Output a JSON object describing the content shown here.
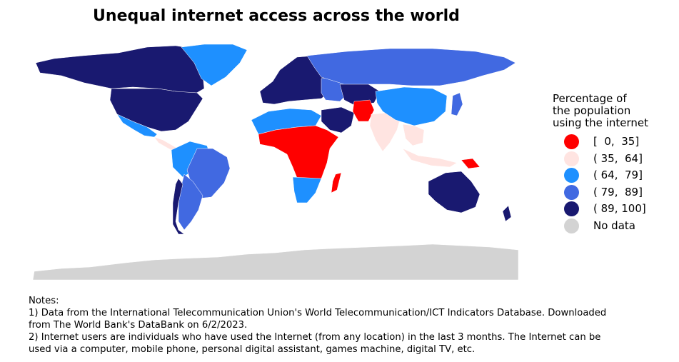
{
  "title": "Unequal internet access across the world",
  "legend": {
    "title_lines": [
      "Percentage of",
      "the population",
      "using the internet"
    ],
    "items": [
      {
        "label": "[  0,  35]",
        "color": "#ff0000"
      },
      {
        "label": "( 35,  64]",
        "color": "#ffe4e1"
      },
      {
        "label": "( 64,  79]",
        "color": "#1e90ff"
      },
      {
        "label": "( 79,  89]",
        "color": "#4169e1"
      },
      {
        "label": "( 89, 100]",
        "color": "#191970"
      },
      {
        "label": "No data",
        "color": "#d3d3d3"
      }
    ]
  },
  "notes": {
    "lines": [
      "Notes:",
      "1) Data from the International Telecommunication Union's World Telecommunication/ICT Indicators Database. Downloaded",
      "from The World Bank's DataBank on 6/2/2023.",
      "2) Internet users are individuals who have used the Internet (from any location) in the last 3 months. The Internet can be",
      "used via a computer, mobile phone, personal digital assistant, games machine, digital TV, etc."
    ]
  },
  "map_regions": [
    {
      "name": "north-america-north",
      "category": 4
    },
    {
      "name": "greenland",
      "category": 2
    },
    {
      "name": "usa",
      "category": 4
    },
    {
      "name": "mexico",
      "category": 2
    },
    {
      "name": "central-america",
      "category": 1
    },
    {
      "name": "south-america-north",
      "category": 2
    },
    {
      "name": "brazil",
      "category": 3
    },
    {
      "name": "south-america-south",
      "category": 3
    },
    {
      "name": "chile",
      "category": 4
    },
    {
      "name": "europe-west",
      "category": 4
    },
    {
      "name": "europe-east",
      "category": 3
    },
    {
      "name": "russia",
      "category": 3
    },
    {
      "name": "north-africa",
      "category": 2
    },
    {
      "name": "sub-saharan-africa",
      "category": 0
    },
    {
      "name": "southern-africa",
      "category": 2
    },
    {
      "name": "madagascar",
      "category": 0
    },
    {
      "name": "middle-east",
      "category": 4
    },
    {
      "name": "central-asia",
      "category": 4
    },
    {
      "name": "afghanistan-pakistan",
      "category": 0
    },
    {
      "name": "india",
      "category": 1
    },
    {
      "name": "china",
      "category": 2
    },
    {
      "name": "japan",
      "category": 3
    },
    {
      "name": "southeast-asia",
      "category": 1
    },
    {
      "name": "indonesia",
      "category": 1
    },
    {
      "name": "papua",
      "category": 0
    },
    {
      "name": "australia",
      "category": 4
    },
    {
      "name": "new-zealand",
      "category": 4
    },
    {
      "name": "antarctica",
      "category": 5
    }
  ]
}
